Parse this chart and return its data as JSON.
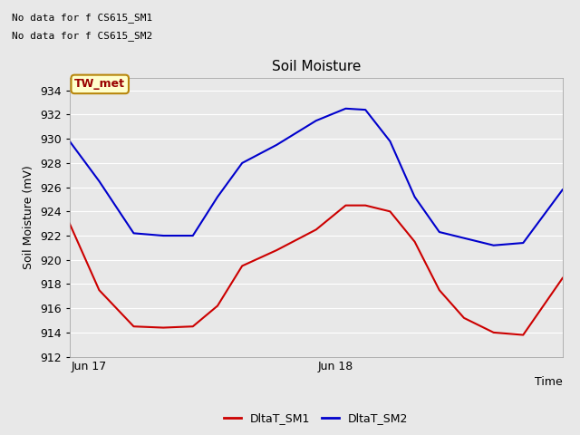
{
  "title": "Soil Moisture",
  "ylabel": "Soil Moisture (mV)",
  "xlabel": "Time",
  "ylim": [
    912,
    935
  ],
  "yticks": [
    912,
    914,
    916,
    918,
    920,
    922,
    924,
    926,
    928,
    930,
    932,
    934
  ],
  "annotations": [
    "No data for f CS615_SM1",
    "No data for f CS615_SM2"
  ],
  "box_label": "TW_met",
  "box_facecolor": "#ffffcc",
  "box_edgecolor": "#b8860b",
  "box_textcolor": "#990000",
  "bg_color": "#e8e8e8",
  "plot_bg_color": "#e8e8e8",
  "grid_color": "#ffffff",
  "sm1_color": "#cc0000",
  "sm2_color": "#0000cc",
  "x_tick_labels": [
    "Jun 17",
    "Jun 18"
  ],
  "x_tick_pos": [
    0.04,
    0.54
  ],
  "sm1_x": [
    0.0,
    0.06,
    0.13,
    0.19,
    0.25,
    0.3,
    0.35,
    0.42,
    0.5,
    0.56,
    0.6,
    0.65,
    0.7,
    0.75,
    0.8,
    0.86,
    0.92,
    1.0
  ],
  "sm1_y": [
    923.0,
    917.5,
    914.5,
    914.4,
    914.5,
    916.2,
    919.5,
    920.8,
    922.5,
    924.5,
    924.5,
    924.0,
    921.5,
    917.5,
    915.2,
    914.0,
    913.8,
    918.5
  ],
  "sm2_x": [
    0.0,
    0.06,
    0.13,
    0.19,
    0.25,
    0.3,
    0.35,
    0.42,
    0.5,
    0.56,
    0.6,
    0.65,
    0.7,
    0.75,
    0.8,
    0.86,
    0.92,
    1.0
  ],
  "sm2_y": [
    929.8,
    926.5,
    922.2,
    922.0,
    922.0,
    925.2,
    928.0,
    929.5,
    931.5,
    932.5,
    932.4,
    929.8,
    925.2,
    922.3,
    921.8,
    921.2,
    921.4,
    925.8
  ],
  "linewidth": 1.5,
  "title_fontsize": 11,
  "tick_fontsize": 9,
  "ylabel_fontsize": 9,
  "xlabel_fontsize": 9,
  "annot_fontsize": 8,
  "legend_fontsize": 9
}
